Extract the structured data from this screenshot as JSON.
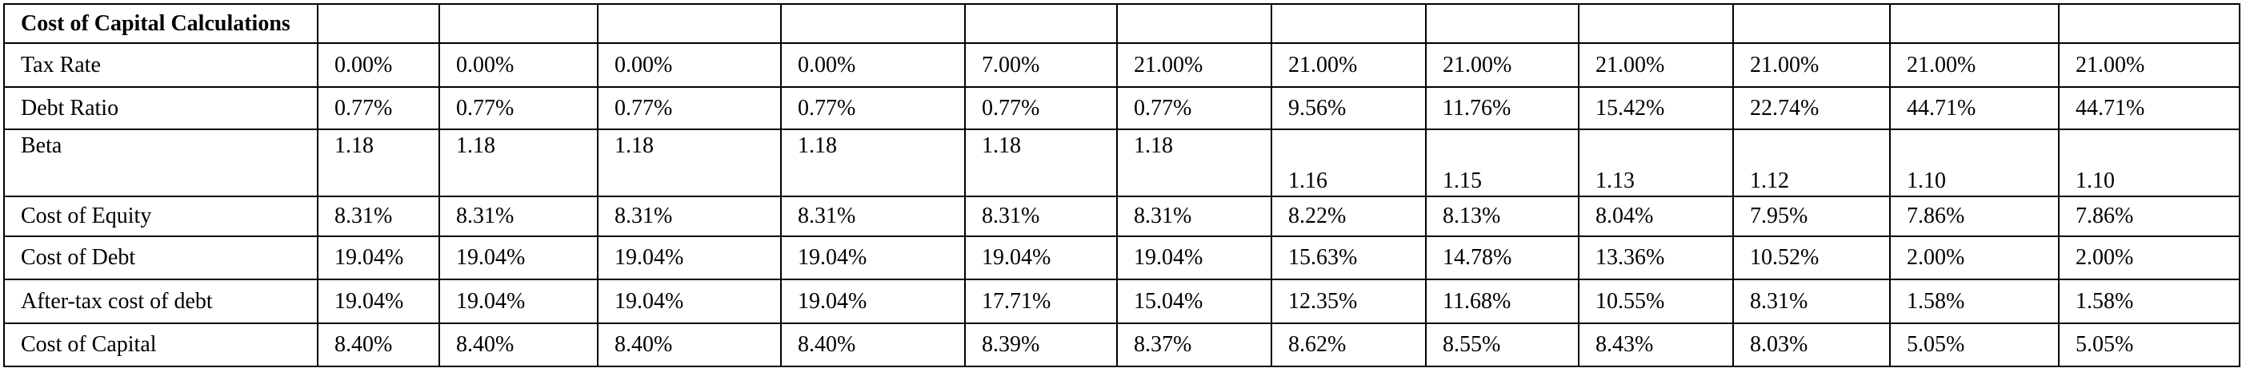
{
  "table": {
    "title": "Cost of Capital Calculations",
    "rows": [
      {
        "label": "Tax Rate",
        "values": [
          "0.00%",
          "0.00%",
          "0.00%",
          "0.00%",
          "7.00%",
          "21.00%",
          "21.00%",
          "21.00%",
          "21.00%",
          "21.00%",
          "21.00%",
          "21.00%"
        ]
      },
      {
        "label": "Debt Ratio",
        "values": [
          "0.77%",
          "0.77%",
          "0.77%",
          "0.77%",
          "0.77%",
          "0.77%",
          "9.56%",
          "11.76%",
          "15.42%",
          "22.74%",
          "44.71%",
          "44.71%"
        ]
      },
      {
        "label": "Beta",
        "values": [
          "1.18",
          "1.18",
          "1.18",
          "1.18",
          "1.18",
          "1.18",
          "1.16",
          "1.15",
          "1.13",
          "1.12",
          "1.10",
          "1.10"
        ]
      },
      {
        "label": "Cost of Equity",
        "values": [
          "8.31%",
          "8.31%",
          "8.31%",
          "8.31%",
          "8.31%",
          "8.31%",
          "8.22%",
          "8.13%",
          "8.04%",
          "7.95%",
          "7.86%",
          "7.86%"
        ]
      },
      {
        "label": "Cost of Debt",
        "values": [
          "19.04%",
          "19.04%",
          "19.04%",
          "19.04%",
          "19.04%",
          "19.04%",
          "15.63%",
          "14.78%",
          "13.36%",
          "10.52%",
          "2.00%",
          "2.00%"
        ]
      },
      {
        "label": "After-tax cost of debt",
        "values": [
          "19.04%",
          "19.04%",
          "19.04%",
          "19.04%",
          "17.71%",
          "15.04%",
          "12.35%",
          "11.68%",
          "10.55%",
          "8.31%",
          "1.58%",
          "1.58%"
        ]
      },
      {
        "label": "Cost of Capital",
        "values": [
          "8.40%",
          "8.40%",
          "8.40%",
          "8.40%",
          "8.39%",
          "8.37%",
          "8.62%",
          "8.55%",
          "8.43%",
          "8.03%",
          "5.05%",
          "5.05%"
        ]
      }
    ]
  }
}
